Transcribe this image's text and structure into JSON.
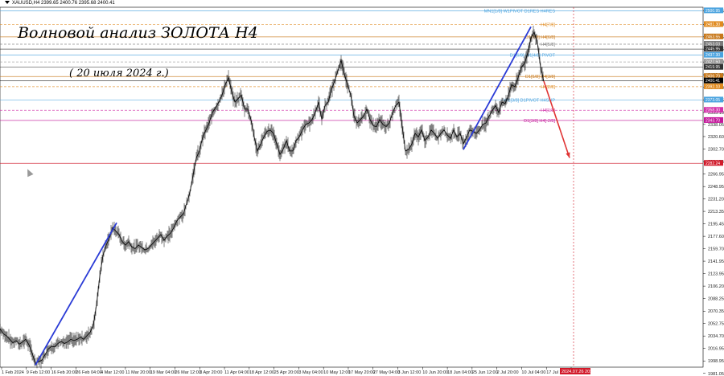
{
  "header": {
    "symbol_line": "XAUUSD,H4  2399.65 2400.76 2395.68 2400.41"
  },
  "title": "Волновой анализ ЗОЛОТА H4",
  "subtitle": "( 20 июля 2024 г.)",
  "colors": {
    "candle": "#000000",
    "wave": "#2a3bd6",
    "forecast": "#e03434",
    "price_tag": "#000000"
  },
  "chart_data": {
    "type": "line",
    "title": "Волновой анализ ЗОЛОТА H4",
    "subtitle": "( 20 июля 2024 г.)",
    "ylim": [
      1990,
      2506
    ],
    "y_ticks": [
      "2500.95",
      "2481.30",
      "2463.55",
      "2445.95",
      "2427.50",
      "2409.20",
      "2391.00",
      "2373.05",
      "2355.10",
      "2338.05",
      "2320.60",
      "2302.70",
      "2284.75",
      "2266.95",
      "2248.95",
      "2231.20",
      "2213.35",
      "2195.45",
      "2177.60",
      "2159.70",
      "2141.95",
      "2123.95",
      "2106.20",
      "2088.25",
      "2070.35",
      "2052.75",
      "2034.70",
      "2016.95",
      "1998.95",
      "1981.05"
    ],
    "x_labels": [
      "1 Feb 2024",
      "9 Feb 12:00",
      "16 Feb 20:00",
      "26 Feb 04:00",
      "4 Mar 12:00",
      "11 Mar 20:00",
      "19 Mar 04:00",
      "26 Mar 12:00",
      "3 Apr 20:00",
      "11 Apr 04:00",
      "18 Apr 12:00",
      "25 Apr 20:00",
      "3 May 04:00",
      "10 May 12:00",
      "17 May 20:00",
      "27 May 04:00",
      "3 Jun 12:00",
      "10 Jun 20:00",
      "18 Jun 04:00",
      "25 Jun 12:00",
      "2 Jul 20:00",
      "10 Jul 04:00",
      "17 Jul 12:00",
      "2024.07.26 20:00"
    ],
    "price_path": [
      [
        0,
        2045
      ],
      [
        4,
        2038
      ],
      [
        8,
        2035
      ],
      [
        12,
        2030
      ],
      [
        16,
        2025
      ],
      [
        20,
        2028
      ],
      [
        24,
        2023
      ],
      [
        28,
        2026
      ],
      [
        32,
        2030
      ],
      [
        36,
        2022
      ],
      [
        40,
        2010
      ],
      [
        44,
        1995
      ],
      [
        48,
        1998
      ],
      [
        52,
        2000
      ],
      [
        56,
        2008
      ],
      [
        60,
        2016
      ],
      [
        64,
        2020
      ],
      [
        68,
        2019
      ],
      [
        72,
        2024
      ],
      [
        76,
        2027
      ],
      [
        80,
        2024
      ],
      [
        84,
        2026
      ],
      [
        88,
        2030
      ],
      [
        92,
        2028
      ],
      [
        96,
        2030
      ],
      [
        100,
        2033
      ],
      [
        104,
        2030
      ],
      [
        108,
        2035
      ],
      [
        112,
        2040
      ],
      [
        116,
        2050
      ],
      [
        120,
        2080
      ],
      [
        124,
        2120
      ],
      [
        128,
        2150
      ],
      [
        132,
        2165
      ],
      [
        136,
        2175
      ],
      [
        140,
        2190
      ],
      [
        144,
        2185
      ],
      [
        148,
        2180
      ],
      [
        152,
        2170
      ],
      [
        156,
        2165
      ],
      [
        160,
        2170
      ],
      [
        164,
        2162
      ],
      [
        168,
        2160
      ],
      [
        172,
        2165
      ],
      [
        176,
        2162
      ],
      [
        180,
        2158
      ],
      [
        184,
        2160
      ],
      [
        188,
        2165
      ],
      [
        192,
        2170
      ],
      [
        196,
        2175
      ],
      [
        200,
        2180
      ],
      [
        204,
        2172
      ],
      [
        208,
        2178
      ],
      [
        212,
        2182
      ],
      [
        216,
        2190
      ],
      [
        220,
        2200
      ],
      [
        224,
        2205
      ],
      [
        228,
        2210
      ],
      [
        232,
        2225
      ],
      [
        236,
        2240
      ],
      [
        240,
        2265
      ],
      [
        244,
        2290
      ],
      [
        248,
        2300
      ],
      [
        252,
        2320
      ],
      [
        256,
        2330
      ],
      [
        260,
        2340
      ],
      [
        264,
        2355
      ],
      [
        268,
        2362
      ],
      [
        272,
        2370
      ],
      [
        276,
        2380
      ],
      [
        280,
        2395
      ],
      [
        284,
        2405
      ],
      [
        288,
        2385
      ],
      [
        292,
        2370
      ],
      [
        296,
        2375
      ],
      [
        300,
        2380
      ],
      [
        304,
        2360
      ],
      [
        308,
        2360
      ],
      [
        312,
        2345
      ],
      [
        316,
        2320
      ],
      [
        320,
        2300
      ],
      [
        324,
        2310
      ],
      [
        328,
        2320
      ],
      [
        332,
        2328
      ],
      [
        336,
        2330
      ],
      [
        340,
        2325
      ],
      [
        344,
        2310
      ],
      [
        348,
        2295
      ],
      [
        352,
        2302
      ],
      [
        356,
        2315
      ],
      [
        360,
        2300
      ],
      [
        364,
        2300
      ],
      [
        368,
        2315
      ],
      [
        372,
        2320
      ],
      [
        376,
        2330
      ],
      [
        380,
        2338
      ],
      [
        384,
        2340
      ],
      [
        388,
        2345
      ],
      [
        392,
        2355
      ],
      [
        396,
        2370
      ],
      [
        400,
        2345
      ],
      [
        404,
        2365
      ],
      [
        408,
        2370
      ],
      [
        412,
        2388
      ],
      [
        416,
        2400
      ],
      [
        420,
        2415
      ],
      [
        424,
        2430
      ],
      [
        428,
        2410
      ],
      [
        432,
        2395
      ],
      [
        436,
        2380
      ],
      [
        440,
        2350
      ],
      [
        444,
        2340
      ],
      [
        448,
        2345
      ],
      [
        452,
        2350
      ],
      [
        456,
        2360
      ],
      [
        460,
        2345
      ],
      [
        464,
        2336
      ],
      [
        468,
        2335
      ],
      [
        472,
        2345
      ],
      [
        476,
        2338
      ],
      [
        480,
        2335
      ],
      [
        484,
        2340
      ],
      [
        488,
        2355
      ],
      [
        492,
        2365
      ],
      [
        496,
        2370
      ],
      [
        500,
        2335
      ],
      [
        504,
        2300
      ],
      [
        508,
        2302
      ],
      [
        512,
        2310
      ],
      [
        516,
        2325
      ],
      [
        520,
        2320
      ],
      [
        524,
        2330
      ],
      [
        528,
        2315
      ],
      [
        532,
        2320
      ],
      [
        536,
        2330
      ],
      [
        540,
        2325
      ],
      [
        544,
        2318
      ],
      [
        548,
        2325
      ],
      [
        552,
        2330
      ],
      [
        556,
        2323
      ],
      [
        560,
        2318
      ],
      [
        564,
        2330
      ],
      [
        568,
        2320
      ],
      [
        572,
        2325
      ],
      [
        576,
        2310
      ],
      [
        580,
        2320
      ],
      [
        584,
        2330
      ],
      [
        588,
        2328
      ],
      [
        592,
        2325
      ],
      [
        596,
        2330
      ],
      [
        600,
        2338
      ],
      [
        604,
        2340
      ],
      [
        608,
        2350
      ],
      [
        612,
        2358
      ],
      [
        616,
        2365
      ],
      [
        620,
        2355
      ],
      [
        624,
        2370
      ],
      [
        628,
        2368
      ],
      [
        632,
        2380
      ],
      [
        636,
        2395
      ],
      [
        640,
        2392
      ],
      [
        644,
        2405
      ],
      [
        648,
        2420
      ],
      [
        652,
        2425
      ],
      [
        656,
        2440
      ],
      [
        660,
        2462
      ],
      [
        664,
        2470
      ],
      [
        668,
        2455
      ],
      [
        672,
        2420
      ],
      [
        676,
        2400
      ]
    ],
    "wave_lines": [
      [
        [
          44,
          1993
        ],
        [
          145,
          2197
        ]
      ],
      [
        [
          576,
          2302
        ],
        [
          660,
          2478
        ]
      ]
    ],
    "forecast_arrow": [
      [
        676,
        2400
      ],
      [
        708,
        2290
      ]
    ],
    "levels": [
      {
        "price": 2500.95,
        "label": "MN1[1/8] W1PIVOT D1RES H4RES",
        "tag": "2500.95",
        "color": "#4aa3df",
        "dash": false
      },
      {
        "price": 2481.3,
        "label": "H4[7/8]",
        "tag": "2481.30",
        "color": "#e08a1e",
        "dash": true
      },
      {
        "price": 2463.55,
        "label": "D1[7/8] H4[6/8]",
        "tag": "2463.55",
        "color": "#c8781a",
        "dash": false
      },
      {
        "price": 2453.03,
        "label": "H4[5/8]",
        "tag": "2453.03",
        "color": "#7a7a7a",
        "dash": true
      },
      {
        "price": 2445.95,
        "label": "",
        "tag": "2445.95",
        "color": "#333333",
        "dash": false
      },
      {
        "price": 2437.3,
        "label": "D1[6/8] W1[4/8] PIVOT",
        "tag": "2437.30",
        "color": "#4aa3df",
        "dash": false
      },
      {
        "price": 2427.5,
        "label": "",
        "tag": "2427.50",
        "color": "#999999",
        "dash": true
      },
      {
        "price": 2419.95,
        "label": "",
        "tag": "2419.95",
        "color": "#333333",
        "dash": false
      },
      {
        "price": 2406.7,
        "label": "D1[5/8] H4[3/8]",
        "tag": "2406.70",
        "color": "#c8781a",
        "dash": false
      },
      {
        "price": 2400.41,
        "label": "",
        "tag": "2400.41",
        "color": "#000000",
        "dash": false
      },
      {
        "price": 2392.1,
        "label": "H4[2/8]",
        "tag": "2392.10",
        "color": "#e08a1e",
        "dash": true
      },
      {
        "price": 2373.05,
        "label": "W1[3/8] D1PIVOT H4SUP",
        "tag": "2373.05",
        "color": "#4aa3df",
        "dash": false
      },
      {
        "price": 2358.3,
        "label": "H4[1/8]",
        "tag": "2358.30",
        "color": "#d12ea8",
        "dash": true
      },
      {
        "price": 2343.7,
        "label": "D1[3/8] H4[-2/8]",
        "tag": "2343.70",
        "color": "#c3179a",
        "dash": false
      },
      {
        "price": 2282.24,
        "label": "",
        "tag": "2282.24",
        "color": "#d11a2a",
        "dash": false
      }
    ],
    "vertical_marker_x": 713
  }
}
